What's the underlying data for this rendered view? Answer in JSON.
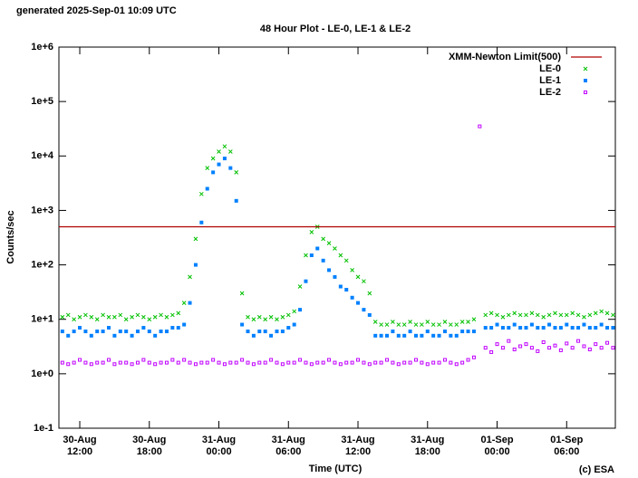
{
  "header": "generated 2025-Sep-01 10:09 UTC",
  "footer": "(c) ESA",
  "chart_data": {
    "type": "scatter",
    "title": "48 Hour Plot - LE-0, LE-1 & LE-2",
    "x_label": "Time (UTC)",
    "y_label": "Counts/sec",
    "log_y": true,
    "legend": "top-right",
    "xlim": [
      10.2,
      58.2
    ],
    "ylim": [
      0.1,
      1000000
    ],
    "xticks": [
      {
        "value": 12,
        "label": "30-Aug\n12:00"
      },
      {
        "value": 18,
        "label": "30-Aug\n18:00"
      },
      {
        "value": 24,
        "label": "31-Aug\n00:00"
      },
      {
        "value": 30,
        "label": "31-Aug\n06:00"
      },
      {
        "value": 36,
        "label": "31-Aug\n12:00"
      },
      {
        "value": 42,
        "label": "31-Aug\n18:00"
      },
      {
        "value": 48,
        "label": "01-Sep\n00:00"
      },
      {
        "value": 54,
        "label": "01-Sep\n06:00"
      }
    ],
    "yticks": [
      {
        "value": 1000000,
        "label": "1e+6"
      },
      {
        "value": 100000,
        "label": "1e+5"
      },
      {
        "value": 10000,
        "label": "1e+4"
      },
      {
        "value": 1000,
        "label": "1e+3"
      },
      {
        "value": 100,
        "label": "1e+2"
      },
      {
        "value": 10,
        "label": "1e+1"
      },
      {
        "value": 1,
        "label": "1e+0"
      },
      {
        "value": 0.1,
        "label": "1e-1"
      }
    ],
    "limit": {
      "name": "XMM-Newton Limit(500)",
      "value": 500,
      "color": "#b00000"
    },
    "x": [
      10.5,
      11,
      11.5,
      12,
      12.5,
      13,
      13.5,
      14,
      14.5,
      15,
      15.5,
      16,
      16.5,
      17,
      17.5,
      18,
      18.5,
      19,
      19.5,
      20,
      20.5,
      21,
      21.5,
      22,
      22.5,
      23,
      23.5,
      24,
      24.5,
      25,
      25.5,
      26,
      26.5,
      27,
      27.5,
      28,
      28.5,
      29,
      29.5,
      30,
      30.5,
      31,
      31.5,
      32,
      32.5,
      33,
      33.5,
      34,
      34.5,
      35,
      35.5,
      36,
      36.5,
      37,
      37.5,
      38,
      38.5,
      39,
      39.5,
      40,
      40.5,
      41,
      41.5,
      42,
      42.5,
      43,
      43.5,
      44,
      44.5,
      45,
      45.5,
      46,
      46.5,
      47,
      47.5,
      48,
      48.5,
      49,
      49.5,
      50,
      50.5,
      51,
      51.5,
      52,
      52.5,
      53,
      53.5,
      54,
      54.5,
      55,
      55.5,
      56,
      56.5,
      57,
      57.5,
      58
    ],
    "series": [
      {
        "name": "LE-0",
        "color": "#00c000",
        "marker": "x",
        "values": [
          11,
          12,
          10,
          11,
          12,
          11,
          10,
          12,
          11,
          11,
          12,
          10,
          11,
          12,
          11,
          10,
          11,
          12,
          11,
          12,
          13,
          20,
          60,
          300,
          2000,
          6000,
          9000,
          12000,
          15000,
          12000,
          5000,
          30,
          11,
          10,
          11,
          10,
          11,
          10,
          11,
          12,
          14,
          40,
          150,
          400,
          500,
          300,
          250,
          200,
          150,
          120,
          80,
          60,
          50,
          30,
          9,
          8,
          8,
          9,
          8,
          8,
          9,
          8,
          8,
          9,
          8,
          8,
          9,
          8,
          8,
          9,
          9,
          10,
          null,
          12,
          13,
          12,
          11,
          12,
          13,
          12,
          12,
          13,
          12,
          11,
          12,
          13,
          12,
          12,
          13,
          12,
          11,
          12,
          13,
          14,
          13,
          12
        ]
      },
      {
        "name": "LE-1",
        "color": "#0080ff",
        "marker": "square",
        "values": [
          6,
          5,
          6,
          7,
          6,
          5,
          6,
          6,
          7,
          5,
          6,
          6,
          5,
          6,
          7,
          6,
          5,
          6,
          6,
          7,
          7,
          8,
          20,
          100,
          600,
          2500,
          5000,
          7000,
          9000,
          6000,
          1500,
          8,
          6,
          5,
          6,
          6,
          5,
          6,
          6,
          7,
          8,
          15,
          50,
          150,
          200,
          120,
          80,
          60,
          40,
          35,
          25,
          20,
          15,
          12,
          5,
          5,
          5,
          6,
          5,
          5,
          6,
          5,
          5,
          6,
          5,
          5,
          6,
          5,
          5,
          6,
          6,
          6,
          null,
          7,
          7,
          8,
          7,
          7,
          8,
          7,
          7,
          8,
          7,
          7,
          8,
          7,
          7,
          8,
          7,
          7,
          8,
          7,
          7,
          8,
          7,
          7
        ]
      },
      {
        "name": "LE-2",
        "color": "#c000ff",
        "marker": "open-square",
        "values": [
          1.6,
          1.5,
          1.6,
          1.8,
          1.6,
          1.5,
          1.6,
          1.6,
          1.8,
          1.5,
          1.6,
          1.6,
          1.5,
          1.6,
          1.8,
          1.6,
          1.5,
          1.6,
          1.6,
          1.8,
          1.6,
          1.8,
          1.6,
          1.5,
          1.6,
          1.6,
          1.8,
          1.6,
          1.5,
          1.6,
          1.6,
          1.8,
          1.6,
          1.5,
          1.6,
          1.6,
          1.8,
          1.6,
          1.5,
          1.6,
          1.6,
          1.8,
          1.6,
          1.5,
          1.6,
          1.6,
          1.8,
          1.6,
          1.5,
          1.6,
          1.6,
          1.8,
          1.6,
          1.5,
          1.6,
          1.6,
          1.8,
          1.6,
          1.5,
          1.6,
          1.6,
          1.8,
          1.6,
          1.5,
          1.6,
          1.6,
          1.8,
          1.6,
          1.5,
          1.6,
          1.8,
          2,
          35000,
          3,
          2.5,
          3.5,
          3,
          4,
          2.8,
          3.2,
          3.5,
          3,
          2.6,
          3.8,
          3,
          3.3,
          2.7,
          3.6,
          3,
          4,
          3.2,
          2.8,
          3.5,
          3,
          3.7,
          3
        ]
      }
    ]
  }
}
